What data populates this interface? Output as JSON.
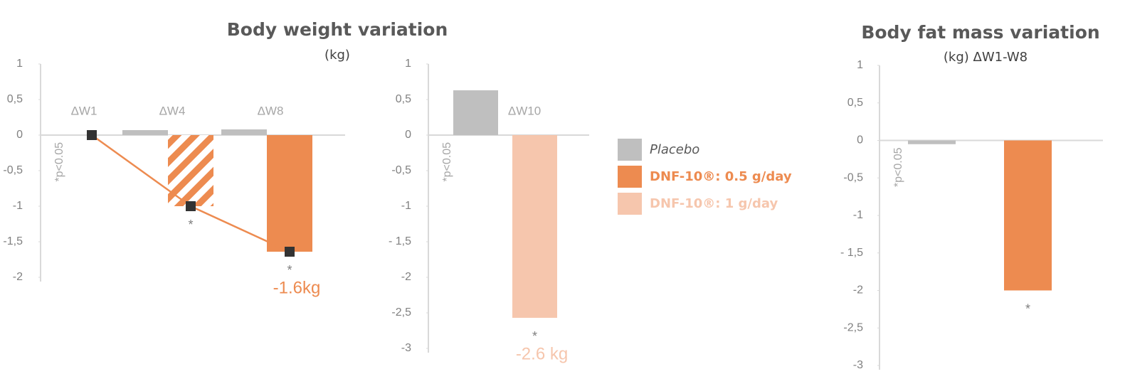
{
  "chart_data": [
    {
      "type": "bar",
      "title": "Body weight variation",
      "subtitle": "(kg)",
      "categories": [
        "ΔW1",
        "ΔW4",
        "ΔW8"
      ],
      "series": [
        {
          "name": "Placebo",
          "color": "#bfbfbf",
          "values": [
            0,
            0.07,
            0.08
          ]
        },
        {
          "name": "DNF-10®: 0.5 g/day",
          "color": "#ed8b50",
          "values": [
            0,
            -1,
            -1.64
          ],
          "hatched": [
            false,
            true,
            false
          ],
          "marker_line": true,
          "significance": [
            null,
            "*",
            "*"
          ],
          "value_labels": [
            null,
            null,
            "-1.6kg"
          ]
        }
      ],
      "ylim": [
        -2,
        1
      ],
      "yticks": [
        1,
        {
          "value": 0.5,
          "label": "0,5"
        },
        0,
        {
          "value": -0.5,
          "label": "-0,5"
        },
        -1,
        {
          "value": -1.5,
          "label": "-1,5"
        },
        -2
      ],
      "note": "*p<0.05"
    },
    {
      "type": "bar",
      "categories": [
        "ΔW10"
      ],
      "series": [
        {
          "name": "Placebo",
          "color": "#bfbfbf",
          "values": [
            0.63
          ]
        },
        {
          "name": "DNF-10®: 1 g/day",
          "color": "#f6c6ad",
          "values": [
            -2.57
          ],
          "significance": [
            "*"
          ],
          "value_labels": [
            "-2.6 kg"
          ]
        }
      ],
      "ylim": [
        -3,
        1
      ],
      "yticks": [
        1,
        {
          "value": 0.5,
          "label": "0,5"
        },
        0,
        {
          "value": -0.5,
          "label": "-0,5"
        },
        -1,
        {
          "value": -1.5,
          "label": "- 1,5"
        },
        -2,
        {
          "value": -2.5,
          "label": "-2,5"
        },
        -3
      ],
      "note": "*p<0.05",
      "legend": true
    },
    {
      "type": "bar",
      "title": "Body fat mass variation",
      "subtitle": "(kg) ΔW1-W8",
      "categories": [
        null
      ],
      "series": [
        {
          "name": "Placebo",
          "color": "#bfbfbf",
          "values": [
            -0.05
          ]
        },
        {
          "name": "DNF-10®: 0.5 g/day",
          "color": "#ed8b50",
          "values": [
            -2.0
          ],
          "significance": [
            "*"
          ]
        }
      ],
      "ylim": [
        -3,
        1
      ],
      "yticks": [
        1,
        {
          "value": 0.5,
          "label": "0,5"
        },
        0,
        {
          "value": -0.5,
          "label": "-0,5"
        },
        -1,
        {
          "value": -1.5,
          "label": "- 1,5"
        },
        -2,
        {
          "value": -2.5,
          "label": "-2,5"
        },
        -3
      ],
      "note": "*p<0.05"
    }
  ]
}
